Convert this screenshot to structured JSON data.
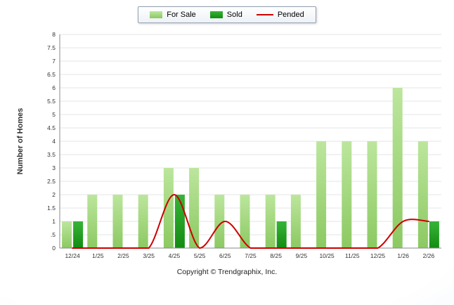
{
  "chart_data": {
    "type": "bar",
    "categories": [
      "12/24",
      "1/25",
      "2/25",
      "3/25",
      "4/25",
      "5/25",
      "6/25",
      "7/25",
      "8/25",
      "9/25",
      "10/25",
      "11/25",
      "12/25",
      "1/26",
      "2/26"
    ],
    "series": [
      {
        "name": "For Sale",
        "type": "bar",
        "color": "#a3d87e",
        "color_top": "#bce69d",
        "color_bottom": "#8cc962",
        "values": [
          1,
          2,
          2,
          2,
          3,
          3,
          2,
          2,
          2,
          2,
          4,
          4,
          4,
          6,
          4
        ]
      },
      {
        "name": "Sold",
        "type": "bar",
        "color": "#21a121",
        "color_top": "#37b437",
        "color_bottom": "#128c12",
        "values": [
          1,
          0,
          0,
          0,
          2,
          0,
          0,
          0,
          1,
          0,
          0,
          0,
          0,
          0,
          1
        ]
      },
      {
        "name": "Pended",
        "type": "line",
        "color": "#cc0000",
        "values": [
          0,
          0,
          0,
          0,
          2,
          0,
          1,
          0,
          0,
          0,
          0,
          0,
          0,
          1,
          1
        ]
      }
    ],
    "ylabel": "Number of Homes",
    "xlabel": "",
    "ylim": [
      0,
      8
    ],
    "ytick_step": 0.5,
    "grid": "horizontal",
    "legend_position": "top-center"
  },
  "footer": {
    "text": "Copyright © Trendgraphix, Inc."
  }
}
